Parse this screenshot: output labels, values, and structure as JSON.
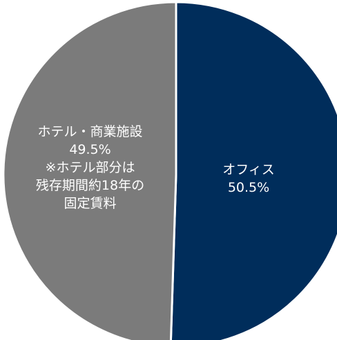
{
  "chart_data": {
    "type": "pie",
    "start_angle_deg": 0,
    "direction": "clockwise",
    "slices": [
      {
        "name": "オフィス",
        "value": 50.5,
        "value_label": "50.5%",
        "color": "#002d5b",
        "note": []
      },
      {
        "name": "ホテル・商業施設",
        "value": 49.5,
        "value_label": "49.5%",
        "color": "#7b7b7b",
        "note": [
          "※ホテル部分は",
          "残存期間約18年の",
          "固定賃料"
        ]
      }
    ],
    "slice_border_color": "#ffffff"
  }
}
